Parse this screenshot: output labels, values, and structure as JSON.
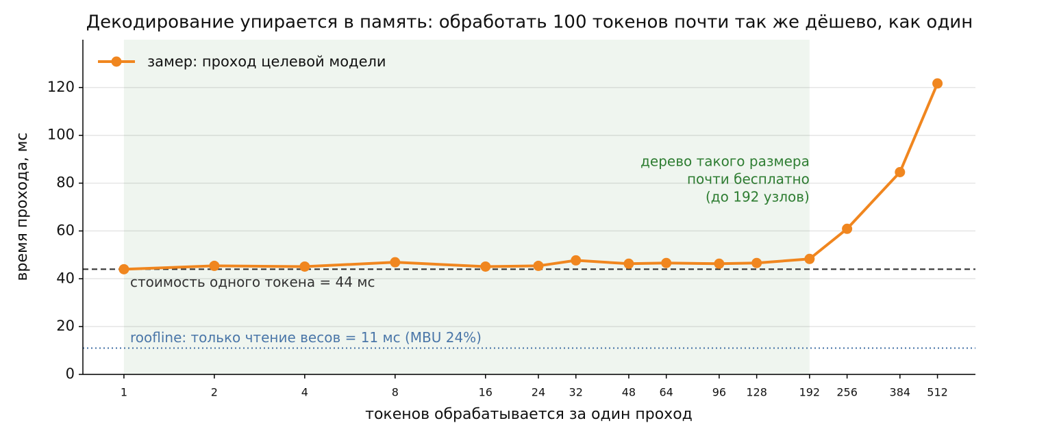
{
  "chart_data": {
    "type": "line",
    "title": "Декодирование упирается в память: обработать 100 токенов почти так же дёшево, как один",
    "x_label": "токенов обрабатывается за один проход",
    "y_label": "время прохода, мс",
    "x_scale": "log2",
    "x": [
      1,
      2,
      4,
      8,
      16,
      24,
      32,
      48,
      64,
      96,
      128,
      192,
      256,
      384,
      512
    ],
    "series": [
      {
        "name": "замер: проход целевой модели",
        "color": "#f0861f",
        "values": [
          44,
          45.4,
          45.1,
          46.9,
          45.1,
          45.4,
          47.7,
          46.3,
          46.6,
          46.3,
          46.6,
          48.3,
          60.9,
          84.6,
          121.7
        ]
      }
    ],
    "xlim": [
      0.73,
      685
    ],
    "xticks": [
      1,
      2,
      4,
      8,
      16,
      24,
      32,
      48,
      64,
      96,
      128,
      192,
      256,
      384,
      512
    ],
    "ylim": [
      0,
      140
    ],
    "yticks": [
      0,
      20,
      40,
      60,
      80,
      100,
      120
    ],
    "grid": true,
    "legend": "upper left",
    "hlines": [
      {
        "value": 44,
        "label": "стоимость одного токена = 44 мс",
        "color": "#333333",
        "style": "dashed"
      },
      {
        "value": 11,
        "label": "roofline: только чтение весов = 11 мс (MBU 24%)",
        "color": "#4a76a8",
        "style": "dotted"
      }
    ],
    "span": {
      "x": [
        1,
        192
      ],
      "color": "#2e7d32",
      "label": [
        "дерево такого размера",
        "почти бесплатно",
        "(до 192 узлов)"
      ]
    }
  }
}
